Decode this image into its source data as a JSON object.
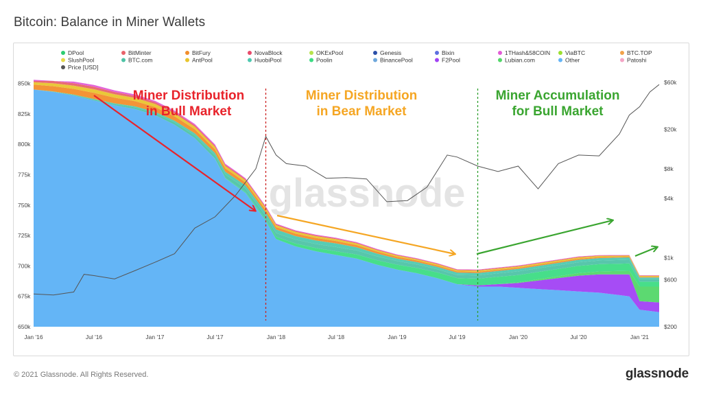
{
  "page": {
    "title": "Bitcoin: Balance in Miner Wallets",
    "copyright": "© 2021 Glassnode. All Rights Reserved.",
    "logo": "glassnode"
  },
  "chart_data": {
    "type": "area",
    "title": "Bitcoin: Balance in Miner Wallets",
    "watermark": "glassnode",
    "x_ticks": [
      "Jan '16",
      "Jul '16",
      "Jan '17",
      "Jul '17",
      "Jan '18",
      "Jul '18",
      "Jan '19",
      "Jul '19",
      "Jan '20",
      "Jul '20",
      "Jan '21"
    ],
    "x_range": [
      "2016-01",
      "2021-03"
    ],
    "y_left": {
      "ticks": [
        "650k",
        "675k",
        "700k",
        "725k",
        "750k",
        "775k",
        "800k",
        "825k",
        "850k"
      ],
      "values": [
        650000,
        675000,
        700000,
        725000,
        750000,
        775000,
        800000,
        825000,
        850000
      ],
      "range": [
        650000,
        852000
      ]
    },
    "y_right": {
      "scale": "log",
      "ticks": [
        "$200",
        "$600",
        "$1k",
        "$4k",
        "$8k",
        "$20k",
        "$60k"
      ],
      "values": [
        200,
        600,
        1000,
        4000,
        8000,
        20000,
        60000
      ]
    },
    "legend": [
      {
        "name": "DPool",
        "color": "#2ecc71"
      },
      {
        "name": "BitMinter",
        "color": "#e8636b"
      },
      {
        "name": "BitFury",
        "color": "#f28e2c"
      },
      {
        "name": "NovaBlock",
        "color": "#e84a6b"
      },
      {
        "name": "OKExPool",
        "color": "#b6e34b"
      },
      {
        "name": "Genesis",
        "color": "#2b4ea8"
      },
      {
        "name": "Bixin",
        "color": "#5d6fe0"
      },
      {
        "name": "1THash&58COIN",
        "color": "#e25bd6"
      },
      {
        "name": "ViaBTC",
        "color": "#9be02f"
      },
      {
        "name": "BTC.TOP",
        "color": "#f2a24a"
      },
      {
        "name": "SlushPool",
        "color": "#e6d84a"
      },
      {
        "name": "BTC.com",
        "color": "#4fc3a6"
      },
      {
        "name": "AntPool",
        "color": "#e8c52e"
      },
      {
        "name": "HuobiPool",
        "color": "#4ec9b0"
      },
      {
        "name": "Poolin",
        "color": "#3ddc84"
      },
      {
        "name": "BinancePool",
        "color": "#6fa8dc"
      },
      {
        "name": "F2Pool",
        "color": "#a142f4"
      },
      {
        "name": "Lubian.com",
        "color": "#53d769"
      },
      {
        "name": "Other",
        "color": "#64b5f6"
      },
      {
        "name": "Patoshi",
        "color": "#f4a6c6"
      },
      {
        "name": "Price [USD]",
        "color": "#555555"
      }
    ],
    "series": [
      {
        "name": "Other",
        "points": [
          [
            "2016-01",
            845000
          ],
          [
            "2016-03",
            843000
          ],
          [
            "2016-05",
            840000
          ],
          [
            "2016-07",
            836000
          ],
          [
            "2016-09",
            832000
          ],
          [
            "2016-11",
            829000
          ],
          [
            "2017-01",
            824000
          ],
          [
            "2017-03",
            816000
          ],
          [
            "2017-05",
            805000
          ],
          [
            "2017-07",
            788000
          ],
          [
            "2017-08",
            772000
          ],
          [
            "2017-10",
            760000
          ],
          [
            "2017-12",
            737000
          ],
          [
            "2018-01",
            722000
          ],
          [
            "2018-03",
            716000
          ],
          [
            "2018-05",
            712000
          ],
          [
            "2018-07",
            709000
          ],
          [
            "2018-09",
            706000
          ],
          [
            "2018-11",
            701000
          ],
          [
            "2019-01",
            697000
          ],
          [
            "2019-03",
            694000
          ],
          [
            "2019-05",
            690000
          ],
          [
            "2019-07",
            685000
          ],
          [
            "2019-09",
            683000
          ],
          [
            "2019-11",
            683000
          ],
          [
            "2020-01",
            682000
          ],
          [
            "2020-03",
            681000
          ],
          [
            "2020-05",
            680000
          ],
          [
            "2020-07",
            679000
          ],
          [
            "2020-09",
            678000
          ],
          [
            "2020-11",
            676000
          ],
          [
            "2020-12",
            675000
          ],
          [
            "2021-01",
            664000
          ],
          [
            "2021-02",
            663000
          ],
          [
            "2021-03",
            662000
          ]
        ]
      },
      {
        "name": "F2Pool",
        "points": [
          [
            "2016-01",
            0
          ],
          [
            "2019-07",
            0
          ],
          [
            "2019-09",
            1000
          ],
          [
            "2019-11",
            2000
          ],
          [
            "2020-01",
            4000
          ],
          [
            "2020-03",
            7000
          ],
          [
            "2020-05",
            10000
          ],
          [
            "2020-07",
            13000
          ],
          [
            "2020-09",
            15000
          ],
          [
            "2020-11",
            17000
          ],
          [
            "2020-12",
            18000
          ],
          [
            "2021-01",
            7000
          ],
          [
            "2021-02",
            7500
          ],
          [
            "2021-03",
            8000
          ]
        ]
      },
      {
        "name": "Lubian.com",
        "points": [
          [
            "2016-01",
            0
          ],
          [
            "2019-11",
            0
          ],
          [
            "2020-03",
            1000
          ],
          [
            "2020-07",
            2000
          ],
          [
            "2020-12",
            3000
          ],
          [
            "2021-01",
            12000
          ],
          [
            "2021-02",
            12500
          ],
          [
            "2021-03",
            13000
          ]
        ]
      },
      {
        "name": "Poolin",
        "points": [
          [
            "2016-01",
            0
          ],
          [
            "2017-06",
            0
          ],
          [
            "2017-12",
            1000
          ],
          [
            "2018-01",
            2000
          ],
          [
            "2018-07",
            3000
          ],
          [
            "2019-01",
            4000
          ],
          [
            "2019-07",
            5000
          ],
          [
            "2019-11",
            6000
          ],
          [
            "2020-03",
            6000
          ],
          [
            "2020-07",
            6000
          ],
          [
            "2020-12",
            6000
          ],
          [
            "2021-01",
            4000
          ],
          [
            "2021-03",
            4000
          ]
        ]
      },
      {
        "name": "BTC.com",
        "points": [
          [
            "2016-01",
            0
          ],
          [
            "2016-09",
            1000
          ],
          [
            "2017-03",
            2000
          ],
          [
            "2017-09",
            3000
          ],
          [
            "2018-01",
            3000
          ],
          [
            "2018-07",
            3500
          ],
          [
            "2019-01",
            3000
          ],
          [
            "2019-07",
            2500
          ],
          [
            "2020-01",
            3000
          ],
          [
            "2020-07",
            3000
          ],
          [
            "2020-12",
            3000
          ],
          [
            "2021-01",
            2000
          ],
          [
            "2021-03",
            2000
          ]
        ]
      },
      {
        "name": "HuobiPool",
        "points": [
          [
            "2016-01",
            0
          ],
          [
            "2017-01",
            1000
          ],
          [
            "2017-07",
            2000
          ],
          [
            "2018-01",
            3000
          ],
          [
            "2018-07",
            3000
          ],
          [
            "2019-01",
            2000
          ],
          [
            "2019-07",
            2000
          ],
          [
            "2020-01",
            2000
          ],
          [
            "2020-07",
            2000
          ],
          [
            "2020-12",
            2000
          ],
          [
            "2021-01",
            1500
          ],
          [
            "2021-03",
            1500
          ]
        ]
      },
      {
        "name": "BitFury",
        "points": [
          [
            "2016-01",
            4000
          ],
          [
            "2016-07",
            5000
          ],
          [
            "2017-01",
            4000
          ],
          [
            "2017-07",
            3000
          ],
          [
            "2018-01",
            2000
          ],
          [
            "2018-07",
            2000
          ],
          [
            "2019-01",
            1500
          ],
          [
            "2019-07",
            1000
          ],
          [
            "2020-01",
            1000
          ],
          [
            "2020-07",
            1000
          ],
          [
            "2021-01",
            500
          ],
          [
            "2021-03",
            500
          ]
        ]
      },
      {
        "name": "AntPool",
        "points": [
          [
            "2016-01",
            2000
          ],
          [
            "2016-07",
            3000
          ],
          [
            "2017-01",
            2500
          ],
          [
            "2017-07",
            2000
          ],
          [
            "2018-01",
            1500
          ],
          [
            "2018-07",
            1500
          ],
          [
            "2019-01",
            1000
          ],
          [
            "2019-07",
            1000
          ],
          [
            "2020-01",
            1000
          ],
          [
            "2020-07",
            1000
          ],
          [
            "2021-01",
            800
          ],
          [
            "2021-03",
            800
          ]
        ]
      },
      {
        "name": "BitMinter",
        "points": [
          [
            "2016-01",
            2000
          ],
          [
            "2016-07",
            2000
          ],
          [
            "2017-01",
            1500
          ],
          [
            "2017-07",
            1000
          ],
          [
            "2018-01",
            800
          ],
          [
            "2018-07",
            600
          ],
          [
            "2019-01",
            500
          ],
          [
            "2019-07",
            500
          ],
          [
            "2020-01",
            500
          ],
          [
            "2020-07",
            500
          ],
          [
            "2021-01",
            300
          ],
          [
            "2021-03",
            300
          ]
        ]
      },
      {
        "name": "1THash&58COIN",
        "points": [
          [
            "2016-01",
            1000
          ],
          [
            "2016-07",
            1500
          ],
          [
            "2017-01",
            1000
          ],
          [
            "2017-07",
            1000
          ],
          [
            "2018-01",
            500
          ],
          [
            "2018-07",
            500
          ],
          [
            "2019-01",
            400
          ],
          [
            "2019-07",
            300
          ],
          [
            "2020-01",
            300
          ],
          [
            "2020-07",
            300
          ],
          [
            "2021-01",
            200
          ],
          [
            "2021-03",
            200
          ]
        ]
      }
    ],
    "price_series": {
      "name": "Price [USD]",
      "points": [
        [
          "2016-01",
          430
        ],
        [
          "2016-03",
          420
        ],
        [
          "2016-05",
          450
        ],
        [
          "2016-06",
          680
        ],
        [
          "2016-07",
          660
        ],
        [
          "2016-09",
          610
        ],
        [
          "2016-11",
          740
        ],
        [
          "2017-01",
          900
        ],
        [
          "2017-03",
          1100
        ],
        [
          "2017-05",
          2000
        ],
        [
          "2017-07",
          2600
        ],
        [
          "2017-09",
          4300
        ],
        [
          "2017-11",
          8000
        ],
        [
          "2017-12",
          17000
        ],
        [
          "2018-01",
          11000
        ],
        [
          "2018-02",
          9000
        ],
        [
          "2018-04",
          8500
        ],
        [
          "2018-06",
          6400
        ],
        [
          "2018-08",
          6500
        ],
        [
          "2018-10",
          6300
        ],
        [
          "2018-12",
          3700
        ],
        [
          "2019-02",
          3800
        ],
        [
          "2019-04",
          5200
        ],
        [
          "2019-06",
          11000
        ],
        [
          "2019-07",
          10500
        ],
        [
          "2019-09",
          8500
        ],
        [
          "2019-11",
          7500
        ],
        [
          "2020-01",
          8500
        ],
        [
          "2020-03",
          5000
        ],
        [
          "2020-05",
          9000
        ],
        [
          "2020-07",
          11000
        ],
        [
          "2020-09",
          10800
        ],
        [
          "2020-11",
          18000
        ],
        [
          "2020-12",
          28000
        ],
        [
          "2021-01",
          34000
        ],
        [
          "2021-02",
          48000
        ],
        [
          "2021-03",
          57000
        ]
      ]
    },
    "annotations": [
      {
        "text": [
          "Miner Distribution",
          "in Bull Market"
        ],
        "color": "#e8232b"
      },
      {
        "text": [
          "Miner Distribution",
          "in Bear Market"
        ],
        "color": "#f5a623"
      },
      {
        "text": [
          "Miner Accumulation",
          "for Bull Market"
        ],
        "color": "#3aa530"
      }
    ],
    "vlines": [
      {
        "date": "2017-12",
        "color": "#cc2222"
      },
      {
        "date": "2019-09",
        "color": "#2e9e2e"
      }
    ],
    "grid": false
  }
}
